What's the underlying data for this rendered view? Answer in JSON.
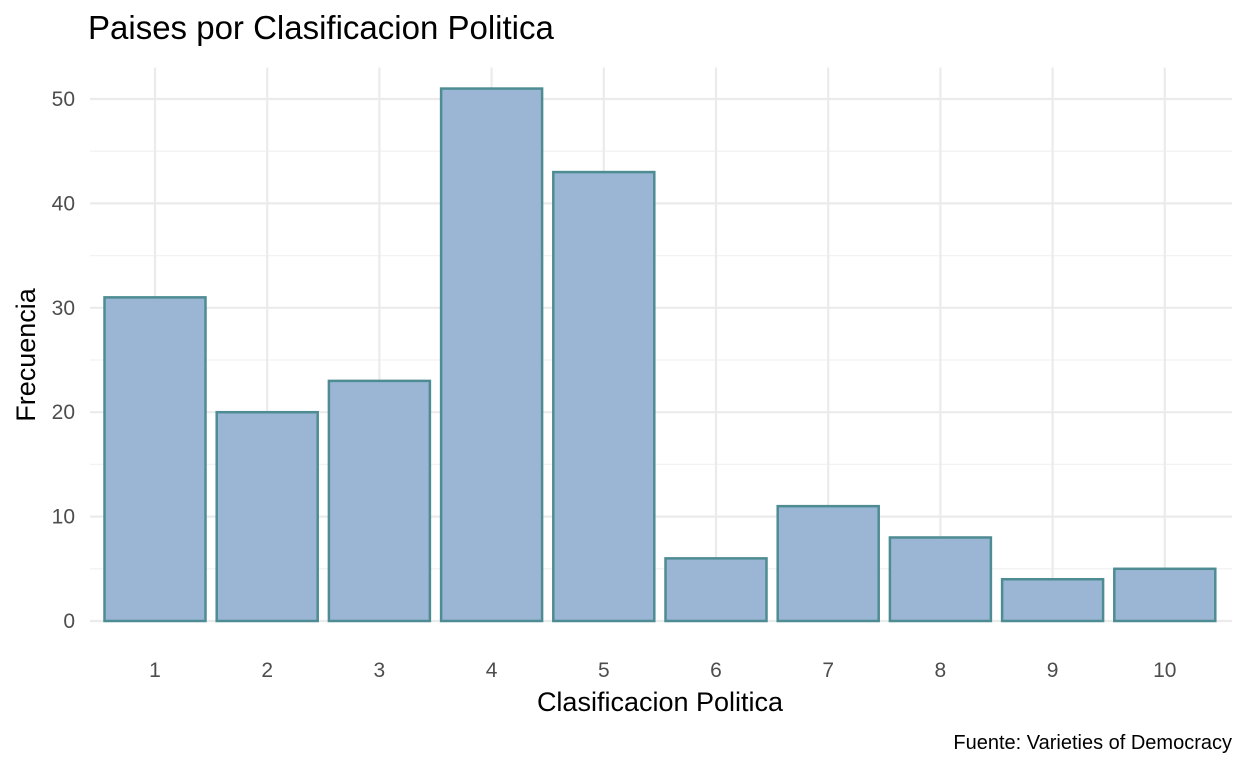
{
  "chart_data": {
    "type": "bar",
    "title": "Paises por Clasificacion Politica",
    "xlabel": "Clasificacion Politica",
    "ylabel": "Frecuencia",
    "caption": "Fuente: Varieties of Democracy",
    "categories": [
      "1",
      "2",
      "3",
      "4",
      "5",
      "6",
      "7",
      "8",
      "9",
      "10"
    ],
    "values": [
      31,
      20,
      23,
      51,
      43,
      6,
      11,
      8,
      4,
      5
    ],
    "ylim": [
      0,
      53
    ],
    "yticks": [
      0,
      10,
      20,
      30,
      40,
      50
    ],
    "grid": true,
    "legend": "none",
    "colors": {
      "bar_fill": "#9bb5d4",
      "bar_outline": "#4e8c93",
      "grid": "#ebebeb"
    }
  }
}
